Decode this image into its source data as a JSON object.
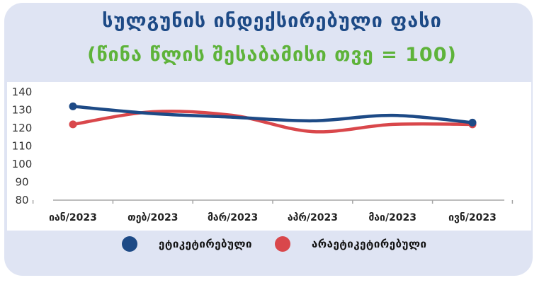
{
  "title": "სულგუნის ინდექსირებული ფასი",
  "subtitle": "(წინა წლის შესაბამისი თვე = 100)",
  "colors": {
    "card": "#dfe4f3",
    "plot_area": "#ffffff",
    "title": "#1d4a86",
    "subtitle": "#5eb33a",
    "series_labeled": "#1d4a86",
    "series_unlabeled": "#d9474b"
  },
  "chart_data": {
    "type": "line",
    "title": "სულგუნის ინდექსირებული ფასი",
    "subtitle": "(წინა წლის შესაბამისი თვე = 100)",
    "categories": [
      "იან/2023",
      "თებ/2023",
      "მარ/2023",
      "აპრ/2023",
      "მაი/2023",
      "ივნ/2023"
    ],
    "series": [
      {
        "name": "ეტიკეტირებული",
        "color": "#1d4a86",
        "values": [
          132,
          128,
          126,
          124,
          127,
          123
        ]
      },
      {
        "name": "არაეტიკეტირებული",
        "color": "#d9474b",
        "values": [
          122,
          129,
          127,
          118,
          122,
          122
        ]
      }
    ],
    "yticks": [
      140,
      130,
      120,
      110,
      100,
      90,
      80
    ],
    "ylim": [
      80,
      140
    ],
    "xlabel": "",
    "ylabel": "",
    "grid": false,
    "legend_position": "bottom",
    "line_style": "smooth"
  }
}
